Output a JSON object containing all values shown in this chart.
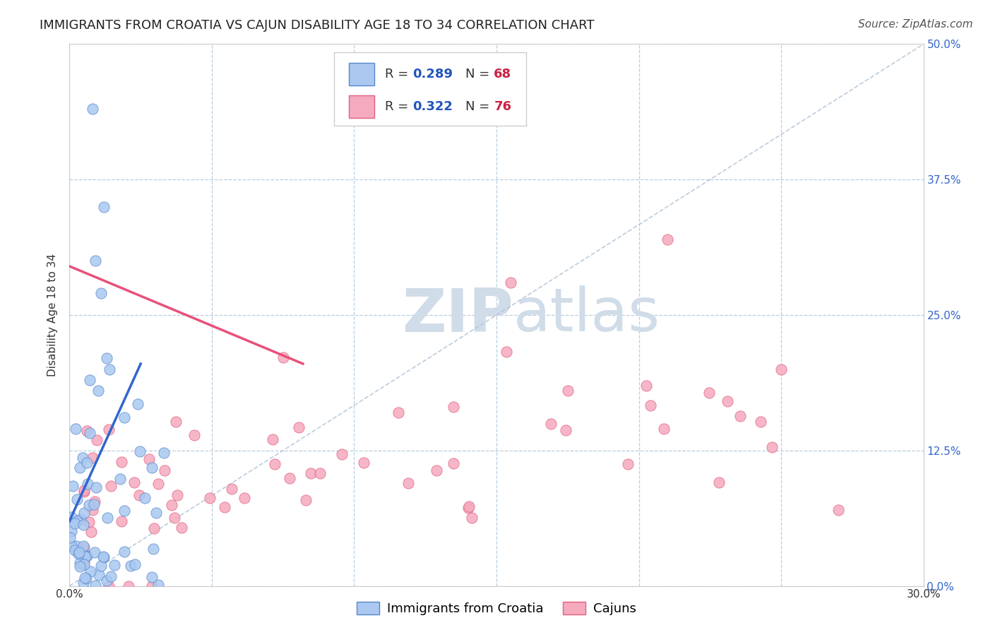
{
  "title": "IMMIGRANTS FROM CROATIA VS CAJUN DISABILITY AGE 18 TO 34 CORRELATION CHART",
  "source": "Source: ZipAtlas.com",
  "xlim": [
    0.0,
    0.3
  ],
  "ylim": [
    0.0,
    0.5
  ],
  "croatia_color": "#aac8f0",
  "cajun_color": "#f5aabe",
  "croatia_edge": "#5588cc",
  "cajun_edge": "#e06080",
  "trendline_croatia_color": "#3366cc",
  "trendline_cajun_color": "#e8507a",
  "diag_color": "#b0c4d8",
  "watermark_color": "#d0dce8",
  "legend_R_color": "#2255bb",
  "legend_N_color": "#cc2244",
  "croatia_R": 0.289,
  "croatia_N": 68,
  "cajun_R": 0.322,
  "cajun_N": 76,
  "legend_label_croatia": "Immigrants from Croatia",
  "legend_label_cajun": "Cajuns",
  "ylabel": "Disability Age 18 to 34",
  "title_fontsize": 13,
  "axis_label_fontsize": 11,
  "tick_fontsize": 11,
  "legend_fontsize": 13,
  "source_fontsize": 11,
  "right_tick_color": "#3366cc",
  "croatia_trendline": [
    [
      0.0,
      0.025
    ],
    [
      0.06,
      0.205
    ]
  ],
  "cajun_trendline": [
    [
      0.0,
      0.082
    ],
    [
      0.295,
      0.205
    ]
  ]
}
